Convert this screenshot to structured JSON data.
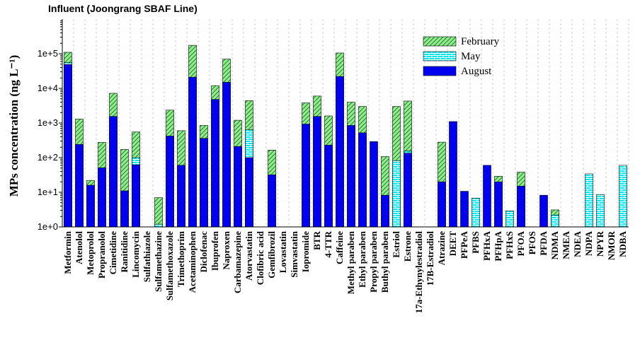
{
  "chart_data": {
    "type": "bar",
    "log_scale": true,
    "title": "Influent (Joongrang SBAF Line)",
    "y_label": "MPs concentration (ng L⁻¹)",
    "categories": [
      "Metformin",
      "Atenolol",
      "Metoprolol",
      "Propranolol",
      "Cimetidine",
      "Ranitidine",
      "Lincomycin",
      "Sulfathiazole",
      "Sulfamethazine",
      "Sulfamethoxazole",
      "Trimethoprim",
      "Acetaminophen",
      "Diclofenac",
      "Ibuprofen",
      "Naproxen",
      "Carbamazepine",
      "Atorvastatin",
      "Clofibric acid",
      "Gemfibrozil",
      "Lovastatin",
      "Simvastatin",
      "Iopromide",
      "BTR",
      "4-TTR",
      "Caffeine",
      "Methyl paraben",
      "Ethyl paraben",
      "Propyl paraben",
      "Buthyl paraben",
      "Estriol",
      "Estrone",
      "17a-Ethynylestradiol",
      "17B-Estradiol",
      "Atrazine",
      "DEET",
      "PFPeA",
      "PFBS",
      "PFHxA",
      "PFHpA",
      "PFHxS",
      "PFOA",
      "PFOS",
      "PFDA",
      "NDMA",
      "NMEA",
      "NDEA",
      "NDPA",
      "NPYR",
      "NMOR",
      "NDBA"
    ],
    "series": [
      {
        "name": "February",
        "color": "#90ee90",
        "hatch": "diagonal",
        "values": [
          110000,
          1300,
          22,
          275,
          7200,
          172,
          550,
          null,
          7,
          2350,
          600,
          175000,
          850,
          12000,
          70000,
          1200,
          4400,
          null,
          165,
          null,
          null,
          3800,
          6000,
          1600,
          105000,
          4000,
          3000,
          null,
          107,
          3000,
          4300,
          null,
          null,
          280,
          null,
          null,
          null,
          null,
          29,
          null,
          38,
          null,
          null,
          3.1,
          null,
          null,
          null,
          null,
          null,
          null
        ]
      },
      {
        "name": "May",
        "color": "#00e5ee",
        "hatch": "brick",
        "values": [
          55000,
          null,
          null,
          null,
          null,
          null,
          100,
          null,
          1.2,
          null,
          null,
          null,
          null,
          null,
          null,
          null,
          640,
          null,
          null,
          null,
          null,
          null,
          null,
          null,
          null,
          null,
          null,
          null,
          null,
          82,
          155,
          null,
          null,
          null,
          null,
          null,
          6.8,
          null,
          null,
          2.9,
          null,
          null,
          null,
          2.2,
          null,
          null,
          34,
          8.6,
          null,
          60
        ]
      },
      {
        "name": "August",
        "color": "#0000ee",
        "hatch": "none",
        "values": [
          49000,
          240,
          16,
          51,
          1550,
          11,
          62,
          null,
          null,
          420,
          60,
          21000,
          360,
          4800,
          15000,
          210,
          100,
          null,
          32,
          null,
          null,
          930,
          1550,
          230,
          22000,
          850,
          520,
          290,
          8.2,
          null,
          135,
          null,
          null,
          20,
          1100,
          10.7,
          null,
          60,
          20,
          null,
          15,
          null,
          8.2,
          null,
          null,
          null,
          null,
          null,
          null,
          null
        ]
      }
    ],
    "ylim": [
      1,
      1000000
    ],
    "yticks": [
      {
        "value": 1,
        "label": "1e+0"
      },
      {
        "value": 10,
        "label": "1e+1"
      },
      {
        "value": 100,
        "label": "1e+2"
      },
      {
        "value": 1000,
        "label": "1e+3"
      },
      {
        "value": 10000,
        "label": "1e+4"
      },
      {
        "value": 100000,
        "label": "1e+5"
      }
    ],
    "x_grid": true,
    "legend": "upper right"
  }
}
